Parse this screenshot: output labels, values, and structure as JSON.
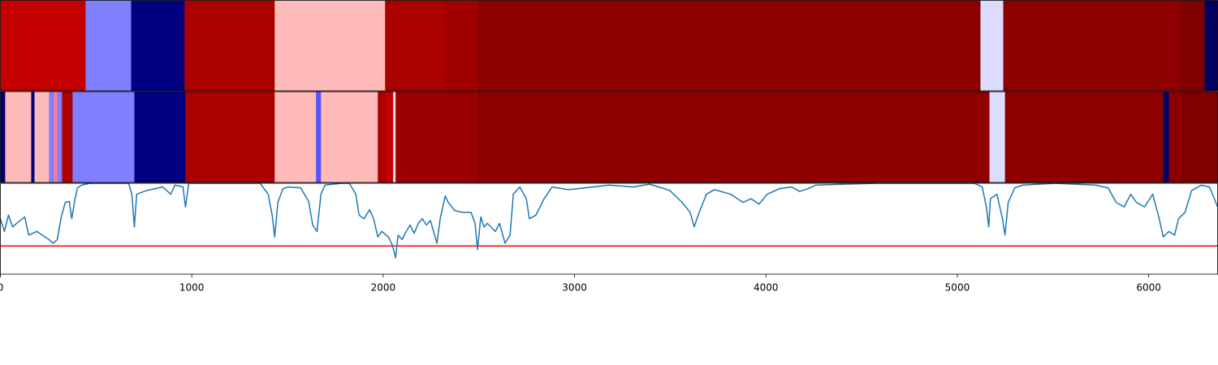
{
  "chart_data": [
    {
      "type": "strip",
      "xlim": [
        0,
        6360
      ],
      "segments": [
        {
          "start": 0,
          "end": 445,
          "color": "#c40000"
        },
        {
          "start": 445,
          "end": 683,
          "color": "#7f7fff"
        },
        {
          "start": 683,
          "end": 962,
          "color": "#000080"
        },
        {
          "start": 962,
          "end": 1433,
          "color": "#ac0000"
        },
        {
          "start": 1433,
          "end": 2010,
          "color": "#ffbaba"
        },
        {
          "start": 2010,
          "end": 2323,
          "color": "#aa0000"
        },
        {
          "start": 2323,
          "end": 2489,
          "color": "#a00000"
        },
        {
          "start": 2489,
          "end": 5121,
          "color": "#8e0000"
        },
        {
          "start": 5121,
          "end": 5240,
          "color": "#dcdcff"
        },
        {
          "start": 5240,
          "end": 6169,
          "color": "#8e0000"
        },
        {
          "start": 6169,
          "end": 6292,
          "color": "#800000"
        },
        {
          "start": 6292,
          "end": 6360,
          "color": "#000060"
        }
      ]
    },
    {
      "type": "strip",
      "xlim": [
        0,
        6360
      ],
      "segments": [
        {
          "start": 0,
          "end": 25,
          "color": "#000070"
        },
        {
          "start": 25,
          "end": 161,
          "color": "#ffbaba"
        },
        {
          "start": 161,
          "end": 178,
          "color": "#000080"
        },
        {
          "start": 178,
          "end": 254,
          "color": "#ffbaba"
        },
        {
          "start": 254,
          "end": 280,
          "color": "#7f7fff"
        },
        {
          "start": 280,
          "end": 297,
          "color": "#ff8080"
        },
        {
          "start": 297,
          "end": 322,
          "color": "#7f7fff"
        },
        {
          "start": 322,
          "end": 377,
          "color": "#b00000"
        },
        {
          "start": 377,
          "end": 700,
          "color": "#7f7fff"
        },
        {
          "start": 700,
          "end": 967,
          "color": "#000080"
        },
        {
          "start": 967,
          "end": 1433,
          "color": "#ac0000"
        },
        {
          "start": 1433,
          "end": 1649,
          "color": "#ffbaba"
        },
        {
          "start": 1649,
          "end": 1675,
          "color": "#5555ff"
        },
        {
          "start": 1675,
          "end": 1972,
          "color": "#ffbaba"
        },
        {
          "start": 1972,
          "end": 2010,
          "color": "#aa0000"
        },
        {
          "start": 2010,
          "end": 2052,
          "color": "#c00000"
        },
        {
          "start": 2052,
          "end": 2065,
          "color": "#ffdada"
        },
        {
          "start": 2065,
          "end": 2489,
          "color": "#9a0000"
        },
        {
          "start": 2489,
          "end": 5168,
          "color": "#8e0000"
        },
        {
          "start": 5168,
          "end": 5249,
          "color": "#dcdcff"
        },
        {
          "start": 5249,
          "end": 6076,
          "color": "#8e0000"
        },
        {
          "start": 6076,
          "end": 6106,
          "color": "#000060"
        },
        {
          "start": 6106,
          "end": 6169,
          "color": "#8e0000"
        },
        {
          "start": 6169,
          "end": 6360,
          "color": "#800000"
        }
      ]
    },
    {
      "type": "line",
      "xlim": [
        0,
        6360
      ],
      "xticks": [
        0,
        1000,
        2000,
        3000,
        4000,
        5000,
        6000
      ],
      "ylim": [
        0,
        1
      ],
      "hline": {
        "value": 0.31,
        "color": "#ff0000"
      },
      "x": [
        0,
        21,
        42,
        64,
        85,
        127,
        148,
        191,
        233,
        254,
        276,
        297,
        318,
        339,
        360,
        373,
        390,
        403,
        424,
        466,
        636,
        670,
        687,
        700,
        712,
        763,
        848,
        890,
        912,
        954,
        967,
        984,
        1018,
        1357,
        1399,
        1420,
        1433,
        1450,
        1476,
        1505,
        1569,
        1611,
        1632,
        1654,
        1675,
        1696,
        1781,
        1823,
        1857,
        1874,
        1900,
        1929,
        1950,
        1972,
        1993,
        2027,
        2048,
        2065,
        2078,
        2099,
        2120,
        2141,
        2162,
        2184,
        2205,
        2226,
        2247,
        2281,
        2298,
        2324,
        2340,
        2374,
        2417,
        2459,
        2480,
        2493,
        2510,
        2527,
        2544,
        2586,
        2608,
        2637,
        2663,
        2680,
        2714,
        2748,
        2764,
        2798,
        2841,
        2883,
        2968,
        3053,
        3180,
        3307,
        3392,
        3456,
        3498,
        3562,
        3604,
        3625,
        3646,
        3689,
        3731,
        3816,
        3880,
        3922,
        3964,
        4007,
        4070,
        4134,
        4176,
        4219,
        4261,
        4410,
        4579,
        4876,
        5088,
        5130,
        5152,
        5164,
        5173,
        5207,
        5236,
        5249,
        5266,
        5300,
        5342,
        5512,
        5724,
        5788,
        5830,
        5872,
        5906,
        5936,
        5978,
        6021,
        6055,
        6076,
        6106,
        6135,
        6156,
        6190,
        6224,
        6275,
        6318,
        6360
      ],
      "series": [
        {
          "color": "#1f77b4",
          "values": [
            0.61,
            0.47,
            0.65,
            0.52,
            0.56,
            0.63,
            0.43,
            0.47,
            0.41,
            0.38,
            0.34,
            0.38,
            0.63,
            0.79,
            0.8,
            0.61,
            0.83,
            0.95,
            0.98,
            1.0,
            1.0,
            1.0,
            0.88,
            0.52,
            0.88,
            0.92,
            0.96,
            0.88,
            0.98,
            0.96,
            0.74,
            1.0,
            1.0,
            1.0,
            0.88,
            0.65,
            0.41,
            0.79,
            0.94,
            0.96,
            0.95,
            0.8,
            0.54,
            0.47,
            0.88,
            0.98,
            1.0,
            1.0,
            0.88,
            0.65,
            0.61,
            0.71,
            0.61,
            0.41,
            0.47,
            0.41,
            0.32,
            0.18,
            0.43,
            0.38,
            0.47,
            0.54,
            0.45,
            0.56,
            0.61,
            0.54,
            0.59,
            0.34,
            0.61,
            0.86,
            0.79,
            0.7,
            0.68,
            0.68,
            0.56,
            0.27,
            0.63,
            0.52,
            0.56,
            0.47,
            0.56,
            0.34,
            0.43,
            0.88,
            0.96,
            0.83,
            0.61,
            0.65,
            0.83,
            0.96,
            0.93,
            0.95,
            0.98,
            0.96,
            0.99,
            0.95,
            0.92,
            0.79,
            0.68,
            0.52,
            0.65,
            0.88,
            0.93,
            0.88,
            0.79,
            0.83,
            0.77,
            0.88,
            0.94,
            0.96,
            0.91,
            0.94,
            0.98,
            0.99,
            1.0,
            1.0,
            1.0,
            0.96,
            0.74,
            0.52,
            0.83,
            0.88,
            0.61,
            0.43,
            0.79,
            0.95,
            0.98,
            1.0,
            0.98,
            0.95,
            0.79,
            0.74,
            0.88,
            0.79,
            0.74,
            0.88,
            0.61,
            0.41,
            0.47,
            0.43,
            0.61,
            0.68,
            0.92,
            0.98,
            0.96,
            0.74
          ]
        }
      ]
    }
  ]
}
